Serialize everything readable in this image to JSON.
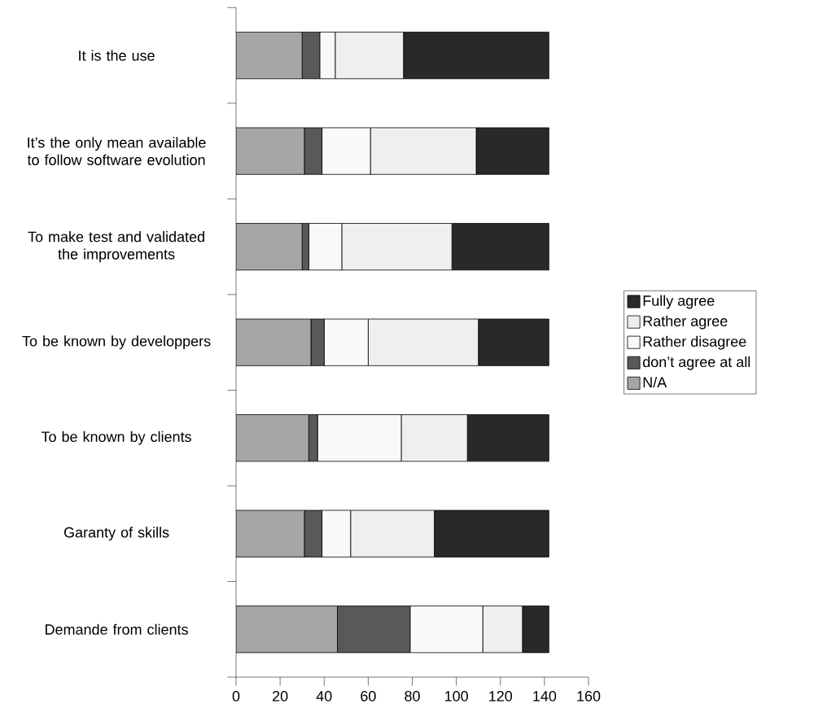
{
  "chart_data": {
    "type": "bar",
    "orientation": "horizontal",
    "stacked": true,
    "categories": [
      "It is the use",
      "It’s the only mean available to follow software evolution",
      "To make test and validated the improvements",
      "To be known by developpers",
      "To be known by clients",
      "Garanty of skills",
      "Demande from clients"
    ],
    "series": [
      {
        "name": "N/A",
        "color": "#a6a6a6",
        "values": [
          30,
          31,
          30,
          34,
          33,
          31,
          46
        ]
      },
      {
        "name": "don’t agree at all",
        "color": "#595959",
        "values": [
          8,
          8,
          3,
          6,
          4,
          8,
          33
        ]
      },
      {
        "name": "Rather disagree",
        "color": "#f9f9f9",
        "values": [
          7,
          22,
          15,
          20,
          38,
          13,
          33
        ]
      },
      {
        "name": "Rather agree",
        "color": "#efefef",
        "values": [
          31,
          48,
          50,
          50,
          30,
          38,
          18
        ]
      },
      {
        "name": "Fully agree",
        "color": "#292929",
        "values": [
          66,
          33,
          44,
          32,
          37,
          52,
          12
        ]
      }
    ],
    "xlim": [
      0,
      160
    ],
    "xticks": [
      0,
      20,
      40,
      60,
      80,
      100,
      120,
      140,
      160
    ],
    "legend": "right"
  }
}
